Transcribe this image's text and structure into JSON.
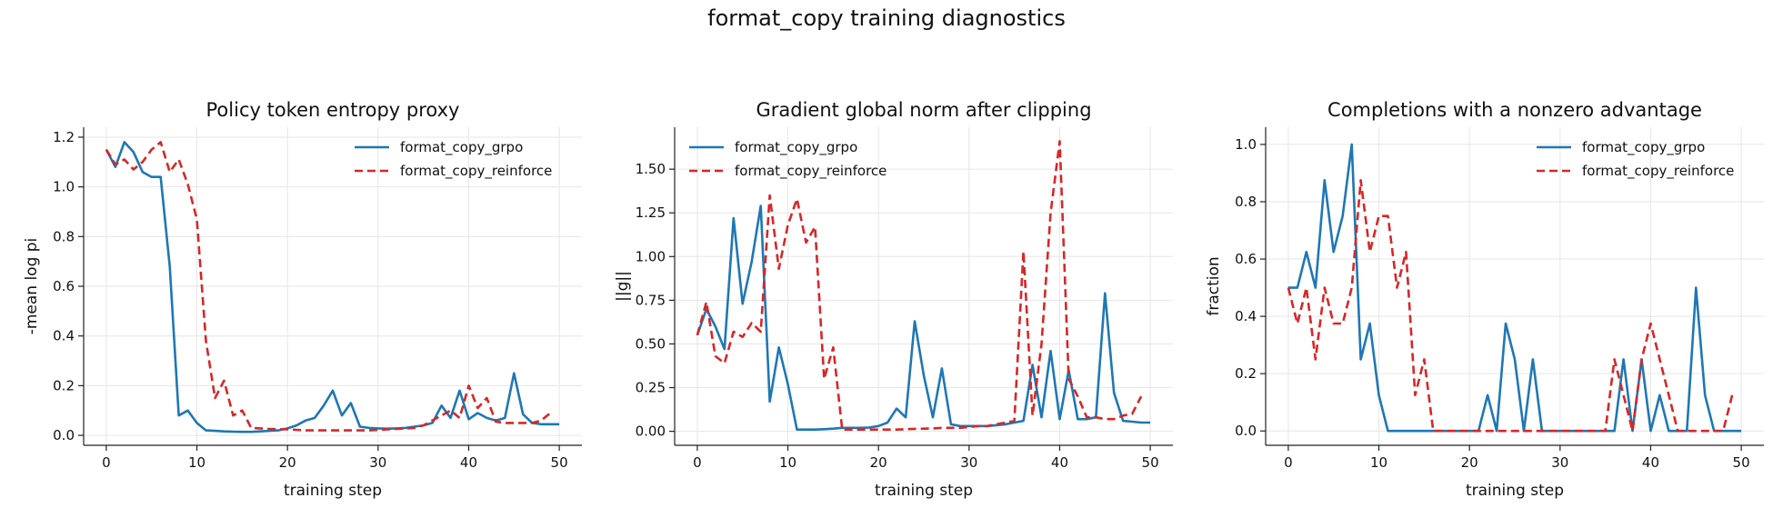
{
  "figure_title": "format_copy training diagnostics",
  "colors": {
    "grpo": "#1f77b4",
    "reinforce": "#d62728"
  },
  "chart_data": [
    {
      "type": "line",
      "title": "Policy token entropy proxy",
      "xlabel": "training step",
      "ylabel": "-mean log pi",
      "xlim": [
        -2.5,
        52.5
      ],
      "ylim": [
        -0.04,
        1.24
      ],
      "xticks": [
        0,
        10,
        20,
        30,
        40,
        50
      ],
      "yticks": [
        0.0,
        0.2,
        0.4,
        0.6,
        0.8,
        1.0,
        1.2
      ],
      "ytick_decimals": 1,
      "grid": true,
      "legend": "top-right",
      "series": [
        {
          "name": "format_copy_grpo",
          "style": "solid",
          "x": [
            0,
            1,
            2,
            3,
            4,
            5,
            6,
            7,
            8,
            9,
            10,
            11,
            12,
            13,
            14,
            15,
            16,
            17,
            18,
            19,
            20,
            21,
            22,
            23,
            24,
            25,
            26,
            27,
            28,
            29,
            30,
            31,
            32,
            33,
            34,
            35,
            36,
            37,
            38,
            39,
            40,
            41,
            42,
            43,
            44,
            45,
            46,
            47,
            48,
            49,
            50
          ],
          "values": [
            1.15,
            1.08,
            1.18,
            1.14,
            1.06,
            1.04,
            1.04,
            0.68,
            0.08,
            0.1,
            0.05,
            0.02,
            0.018,
            0.016,
            0.015,
            0.014,
            0.014,
            0.016,
            0.018,
            0.02,
            0.028,
            0.04,
            0.06,
            0.07,
            0.12,
            0.18,
            0.08,
            0.13,
            0.035,
            0.03,
            0.028,
            0.027,
            0.028,
            0.03,
            0.035,
            0.04,
            0.05,
            0.12,
            0.07,
            0.18,
            0.065,
            0.09,
            0.07,
            0.06,
            0.07,
            0.25,
            0.085,
            0.05,
            0.045,
            0.045,
            0.045
          ]
        },
        {
          "name": "format_copy_reinforce",
          "style": "dashed",
          "x": [
            0,
            1,
            2,
            3,
            4,
            5,
            6,
            7,
            8,
            9,
            10,
            11,
            12,
            13,
            14,
            15,
            16,
            17,
            18,
            19,
            20,
            21,
            22,
            23,
            24,
            25,
            26,
            27,
            28,
            29,
            30,
            31,
            32,
            33,
            34,
            35,
            36,
            37,
            38,
            39,
            40,
            41,
            42,
            43,
            44,
            45,
            46,
            47,
            48,
            49
          ],
          "values": [
            1.15,
            1.09,
            1.11,
            1.07,
            1.1,
            1.15,
            1.18,
            1.06,
            1.11,
            1.01,
            0.87,
            0.38,
            0.15,
            0.22,
            0.08,
            0.1,
            0.03,
            0.028,
            0.026,
            0.025,
            0.024,
            0.022,
            0.02,
            0.02,
            0.02,
            0.02,
            0.02,
            0.02,
            0.02,
            0.02,
            0.022,
            0.024,
            0.026,
            0.028,
            0.03,
            0.04,
            0.06,
            0.08,
            0.1,
            0.07,
            0.2,
            0.11,
            0.15,
            0.055,
            0.05,
            0.05,
            0.05,
            0.05,
            0.06,
            0.09
          ]
        }
      ]
    },
    {
      "type": "line",
      "title": "Gradient global norm after clipping",
      "xlabel": "training step",
      "ylabel": "||g||",
      "xlim": [
        -2.5,
        52.5
      ],
      "ylim": [
        -0.08,
        1.74
      ],
      "xticks": [
        0,
        10,
        20,
        30,
        40,
        50
      ],
      "yticks": [
        0.0,
        0.25,
        0.5,
        0.75,
        1.0,
        1.25,
        1.5
      ],
      "ytick_decimals": 2,
      "grid": true,
      "legend": "top-left",
      "series": [
        {
          "name": "format_copy_grpo",
          "style": "solid",
          "x": [
            0,
            1,
            2,
            3,
            4,
            5,
            6,
            7,
            8,
            9,
            10,
            11,
            12,
            13,
            14,
            15,
            16,
            17,
            18,
            19,
            20,
            21,
            22,
            23,
            24,
            25,
            26,
            27,
            28,
            29,
            30,
            31,
            32,
            33,
            34,
            35,
            36,
            37,
            38,
            39,
            40,
            41,
            42,
            43,
            44,
            45,
            46,
            47,
            48,
            49,
            50
          ],
          "values": [
            0.55,
            0.7,
            0.6,
            0.47,
            1.22,
            0.73,
            0.97,
            1.29,
            0.17,
            0.48,
            0.27,
            0.01,
            0.01,
            0.01,
            0.012,
            0.015,
            0.02,
            0.02,
            0.02,
            0.022,
            0.03,
            0.05,
            0.13,
            0.08,
            0.63,
            0.32,
            0.08,
            0.36,
            0.04,
            0.03,
            0.03,
            0.03,
            0.03,
            0.035,
            0.04,
            0.05,
            0.06,
            0.38,
            0.08,
            0.46,
            0.07,
            0.35,
            0.07,
            0.07,
            0.08,
            0.79,
            0.22,
            0.06,
            0.055,
            0.05,
            0.05
          ]
        },
        {
          "name": "format_copy_reinforce",
          "style": "dashed",
          "x": [
            0,
            1,
            2,
            3,
            4,
            5,
            6,
            7,
            8,
            9,
            10,
            11,
            12,
            13,
            14,
            15,
            16,
            17,
            18,
            19,
            20,
            21,
            22,
            23,
            24,
            25,
            26,
            27,
            28,
            29,
            30,
            31,
            32,
            33,
            34,
            35,
            36,
            37,
            38,
            39,
            40,
            41,
            42,
            43,
            44,
            45,
            46,
            47,
            48,
            49
          ],
          "values": [
            0.55,
            0.74,
            0.43,
            0.39,
            0.57,
            0.54,
            0.62,
            0.57,
            1.35,
            0.93,
            1.18,
            1.33,
            1.08,
            1.17,
            0.3,
            0.48,
            0.01,
            0.01,
            0.01,
            0.01,
            0.01,
            0.01,
            0.01,
            0.012,
            0.014,
            0.015,
            0.016,
            0.02,
            0.02,
            0.02,
            0.025,
            0.03,
            0.03,
            0.04,
            0.05,
            0.06,
            1.03,
            0.09,
            0.5,
            1.25,
            1.66,
            0.3,
            0.2,
            0.08,
            0.08,
            0.07,
            0.07,
            0.09,
            0.1,
            0.2
          ]
        }
      ]
    },
    {
      "type": "line",
      "title": "Completions with a nonzero advantage",
      "xlabel": "training step",
      "ylabel": "fraction",
      "xlim": [
        -2.5,
        52.5
      ],
      "ylim": [
        -0.05,
        1.06
      ],
      "xticks": [
        0,
        10,
        20,
        30,
        40,
        50
      ],
      "yticks": [
        0.0,
        0.2,
        0.4,
        0.6,
        0.8,
        1.0
      ],
      "ytick_decimals": 1,
      "grid": true,
      "legend": "top-right",
      "series": [
        {
          "name": "format_copy_grpo",
          "style": "solid",
          "x": [
            0,
            1,
            2,
            3,
            4,
            5,
            6,
            7,
            8,
            9,
            10,
            11,
            12,
            13,
            14,
            15,
            16,
            17,
            18,
            19,
            20,
            21,
            22,
            23,
            24,
            25,
            26,
            27,
            28,
            29,
            30,
            31,
            32,
            33,
            34,
            35,
            36,
            37,
            38,
            39,
            40,
            41,
            42,
            43,
            44,
            45,
            46,
            47,
            48,
            49,
            50
          ],
          "values": [
            0.5,
            0.5,
            0.625,
            0.5,
            0.875,
            0.625,
            0.75,
            1.0,
            0.25,
            0.375,
            0.125,
            0.0,
            0.0,
            0.0,
            0.0,
            0.0,
            0.0,
            0.0,
            0.0,
            0.0,
            0.0,
            0.0,
            0.125,
            0.0,
            0.375,
            0.25,
            0.0,
            0.25,
            0.0,
            0.0,
            0.0,
            0.0,
            0.0,
            0.0,
            0.0,
            0.0,
            0.0,
            0.25,
            0.0,
            0.25,
            0.0,
            0.125,
            0.0,
            0.0,
            0.0,
            0.5,
            0.125,
            0.0,
            0.0,
            0.0,
            0.0
          ]
        },
        {
          "name": "format_copy_reinforce",
          "style": "dashed",
          "x": [
            0,
            1,
            2,
            3,
            4,
            5,
            6,
            7,
            8,
            9,
            10,
            11,
            12,
            13,
            14,
            15,
            16,
            17,
            18,
            19,
            20,
            21,
            22,
            23,
            24,
            25,
            26,
            27,
            28,
            29,
            30,
            31,
            32,
            33,
            34,
            35,
            36,
            37,
            38,
            39,
            40,
            41,
            42,
            43,
            44,
            45,
            46,
            47,
            48,
            49
          ],
          "values": [
            0.5,
            0.375,
            0.5,
            0.25,
            0.5,
            0.375,
            0.375,
            0.5,
            0.875,
            0.625,
            0.75,
            0.75,
            0.5,
            0.625,
            0.125,
            0.25,
            0.0,
            0.0,
            0.0,
            0.0,
            0.0,
            0.0,
            0.0,
            0.0,
            0.0,
            0.0,
            0.0,
            0.0,
            0.0,
            0.0,
            0.0,
            0.0,
            0.0,
            0.0,
            0.0,
            0.0,
            0.25,
            0.125,
            0.0,
            0.25,
            0.375,
            0.25,
            0.125,
            0.0,
            0.0,
            0.0,
            0.0,
            0.0,
            0.0,
            0.125
          ]
        }
      ]
    }
  ]
}
